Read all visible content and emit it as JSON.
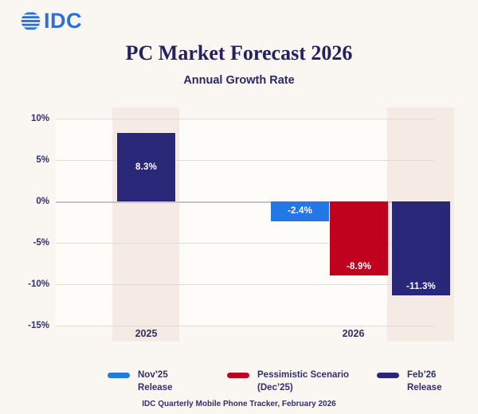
{
  "brand": {
    "logo_text": "IDC",
    "logo_color": "#2e6fd4"
  },
  "header": {
    "title": "PC Market Forecast 2026",
    "subtitle": "Annual Growth Rate"
  },
  "chart_data": {
    "type": "bar",
    "title": "PC Market Forecast 2026",
    "subtitle": "Annual Growth Rate",
    "categories": [
      "2025",
      "2026"
    ],
    "y_axis": {
      "ticks": [
        "10%",
        "5%",
        "0%",
        "-5%",
        "-10%",
        "-15%"
      ],
      "tick_values": [
        10,
        5,
        0,
        -5,
        -10,
        -15
      ],
      "min": -15,
      "max": 10,
      "unit": "%"
    },
    "grid": true,
    "bars": [
      {
        "group": "2025",
        "series": "Feb'26 Release",
        "value": 8.3,
        "label": "8.3%",
        "color": "#282778",
        "label_position": "center"
      },
      {
        "group": "2026",
        "series": "Nov'25 Release",
        "value": -2.4,
        "label": "-2.4%",
        "color": "#2378e8",
        "label_position": "center"
      },
      {
        "group": "2026",
        "series": "Pessimistic Scenario (Dec'25)",
        "value": -8.9,
        "label": "-8.9%",
        "color": "#c1021e",
        "label_position": "bottom"
      },
      {
        "group": "2026",
        "series": "Feb'26 Release",
        "value": -11.3,
        "label": "-11.3%",
        "color": "#282778",
        "label_position": "bottom"
      }
    ],
    "legend_position": "bottom"
  },
  "legend": {
    "items": [
      {
        "line1": "Nov’25",
        "line2": "Release",
        "color": "#2378e8"
      },
      {
        "line1": "Pessimistic Scenario",
        "line2": "(Dec’25)",
        "color": "#c1021e"
      },
      {
        "line1": "Feb’26",
        "line2": "Release",
        "color": "#282778"
      }
    ]
  },
  "footer": {
    "source": "IDC Quarterly Mobile Phone Tracker, February 2026"
  }
}
